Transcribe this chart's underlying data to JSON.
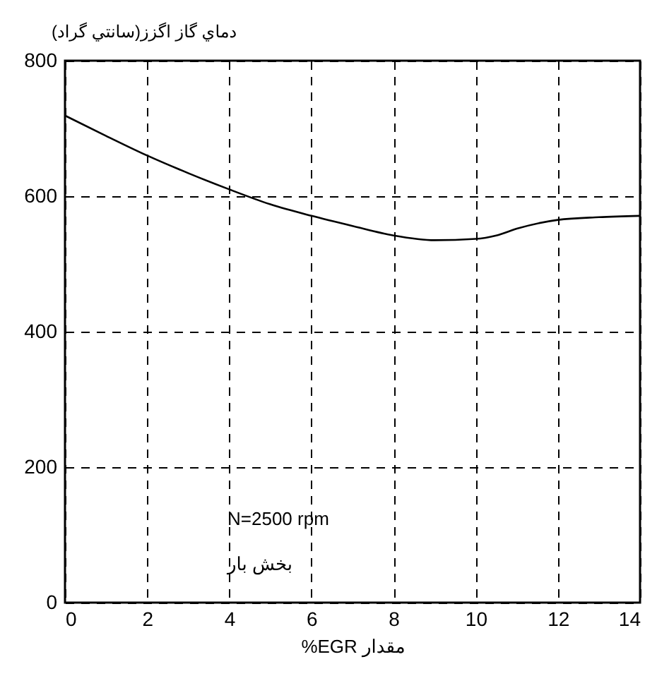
{
  "chart_data": {
    "type": "line",
    "xlabel": "%EGR مقدار",
    "ylabel": "دماي گاز اگزز(سانتي گراد)",
    "x": [
      0,
      1,
      2,
      3,
      4,
      5,
      6,
      7,
      8,
      9,
      10,
      10.5,
      11,
      12,
      13,
      14
    ],
    "series": [
      {
        "color": "#000000",
        "values": [
          719,
          689,
          660,
          634,
          610,
          588,
          571,
          556,
          542,
          535,
          537,
          542,
          552,
          565,
          569,
          571
        ]
      }
    ],
    "xlim": [
      0,
      14
    ],
    "xticks": [
      0,
      2,
      4,
      6,
      8,
      10,
      12,
      14
    ],
    "ylim": [
      0,
      800
    ],
    "yticks": [
      0,
      200,
      400,
      600,
      800
    ],
    "grid": true,
    "line_style": "solid",
    "marker": "none",
    "annotations": [
      "N=2500 rpm",
      "بخش بار"
    ]
  }
}
